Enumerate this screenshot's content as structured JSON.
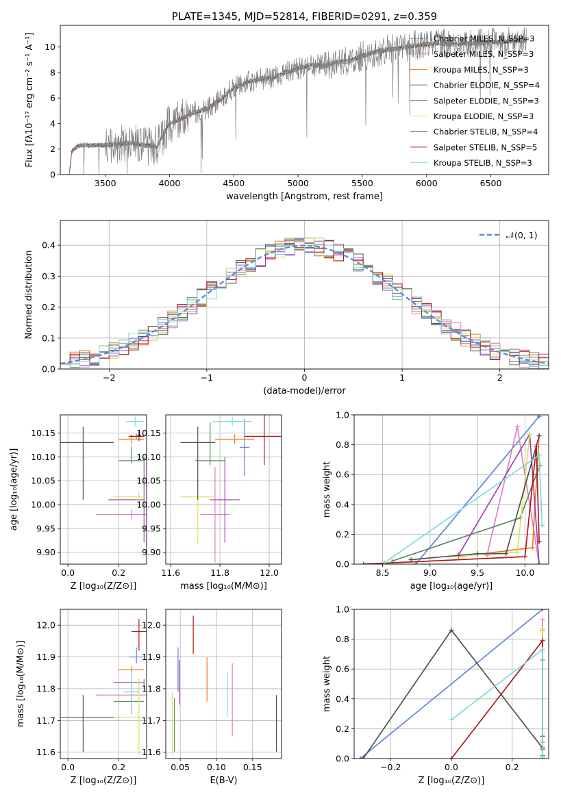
{
  "colors": {
    "Chabrier MILES": "#5b84d8",
    "Salpeter MILES": "#e07ec2",
    "Kroupa MILES": "#ee7a1c",
    "Chabrier ELODIE": "#5a8a5a",
    "Salpeter ELODIE": "#a040b0",
    "Kroupa ELODIE": "#d6e65a",
    "Chabrier STELIB": "#505050",
    "Salpeter STELIB": "#b01818",
    "Kroupa STELIB": "#7fdada",
    "N01": "#5b8ad6",
    "data": "#808080"
  },
  "chart_data": [
    {
      "id": "spectrum",
      "type": "line",
      "title": "PLATE=1345, MJD=52814, FIBERID=0291, z=0.359",
      "xlabel": "wavelength [Angstrom, rest frame]",
      "ylabel": "Flux [fλ10⁻¹⁷ erg cm⁻² s⁻¹ A⁻¹]",
      "xlim": [
        3150,
        6950
      ],
      "ylim": [
        0,
        11.7
      ],
      "xticks": [
        "3500",
        "4000",
        "4500",
        "5000",
        "5500",
        "6000",
        "6500"
      ],
      "yticks": [
        "0",
        "2",
        "4",
        "6",
        "8",
        "10"
      ],
      "legend": [
        "Chabrier MILES, N_SSP=3",
        "Salpeter MILES, N_SSP=3",
        "Kroupa MILES, N_SSP=3",
        "Chabrier ELODIE, N_SSP=4",
        "Salpeter ELODIE, N_SSP=3",
        "Kroupa ELODIE, N_SSP=3",
        "Chabrier STELIB, N_SSP=4",
        "Salpeter STELIB, N_SSP=5",
        "Kroupa STELIB, N_SSP=3"
      ],
      "legend_position": "right",
      "continuum": [
        [
          3220,
          0.0
        ],
        [
          3240,
          1.9
        ],
        [
          3300,
          2.3
        ],
        [
          3400,
          2.3
        ],
        [
          3500,
          2.3
        ],
        [
          3600,
          2.4
        ],
        [
          3700,
          2.5
        ],
        [
          3800,
          2.3
        ],
        [
          3900,
          2.2
        ],
        [
          3950,
          3.1
        ],
        [
          4000,
          4.0
        ],
        [
          4100,
          4.4
        ],
        [
          4200,
          4.9
        ],
        [
          4300,
          5.2
        ],
        [
          4400,
          5.9
        ],
        [
          4500,
          6.8
        ],
        [
          4600,
          7.2
        ],
        [
          4700,
          7.5
        ],
        [
          4800,
          7.6
        ],
        [
          4900,
          8.0
        ],
        [
          5000,
          8.3
        ],
        [
          5100,
          8.6
        ],
        [
          5200,
          8.5
        ],
        [
          5300,
          8.8
        ],
        [
          5400,
          8.9
        ],
        [
          5500,
          9.3
        ],
        [
          5600,
          9.6
        ],
        [
          5700,
          9.8
        ],
        [
          5800,
          9.9
        ],
        [
          5900,
          10.1
        ],
        [
          6000,
          10.2
        ],
        [
          6100,
          10.3
        ],
        [
          6200,
          10.2
        ],
        [
          6300,
          10.3
        ],
        [
          6400,
          10.3
        ],
        [
          6500,
          10.4
        ],
        [
          6600,
          10.4
        ],
        [
          6700,
          10.5
        ],
        [
          6780,
          10.5
        ]
      ]
    },
    {
      "id": "residuals",
      "type": "line",
      "xlabel": "(data-model)/error",
      "ylabel": "Normed distribution",
      "xlim": [
        -2.5,
        2.5
      ],
      "ylim": [
        0,
        0.48
      ],
      "xticks": [
        "−2",
        "−1",
        "0",
        "1",
        "2"
      ],
      "yticks": [
        "0.0",
        "0.1",
        "0.2",
        "0.3",
        "0.4"
      ],
      "legend": [
        "𝒩(0, 1)"
      ],
      "legend_position": "top-right",
      "bin_width": 0.1
    },
    {
      "id": "age_Z",
      "type": "scatter",
      "xlabel": "Z [log₁₀(Z/Z⊙)]",
      "ylabel": "age  [log₁₀(age/yr)]",
      "xlim": [
        -0.03,
        0.31
      ],
      "ylim": [
        9.875,
        10.188
      ],
      "xticks": [
        "0.0",
        "0.2"
      ],
      "yticks": [
        "9.90",
        "9.95",
        "10.00",
        "10.05",
        "10.10",
        "10.15"
      ],
      "points": [
        {
          "name": "Chabrier MILES",
          "x": 0.27,
          "y": 10.143,
          "xerr": [
            0.03,
            0.03
          ],
          "yerr": [
            0.005,
            0.005
          ]
        },
        {
          "name": "Salpeter MILES",
          "x": 0.25,
          "y": 9.979,
          "xerr": [
            0.14,
            0.06
          ],
          "yerr": [
            0.01,
            0.01
          ]
        },
        {
          "name": "Kroupa MILES",
          "x": 0.25,
          "y": 10.137,
          "xerr": [
            0.05,
            0.05
          ],
          "yerr": [
            0.01,
            0.01
          ]
        },
        {
          "name": "Chabrier ELODIE",
          "x": 0.25,
          "y": 10.092,
          "xerr": [
            0.05,
            0.05
          ],
          "yerr": [
            0.005,
            0.03
          ]
        },
        {
          "name": "Salpeter ELODIE",
          "x": 0.3,
          "y": 10.01,
          "xerr": [
            0.14,
            0.0
          ],
          "yerr": [
            0.09,
            0.09
          ]
        },
        {
          "name": "Kroupa ELODIE",
          "x": 0.28,
          "y": 10.016,
          "xerr": [
            0.1,
            0.02
          ],
          "yerr": [
            0.01,
            0.01
          ]
        },
        {
          "name": "Chabrier STELIB",
          "x": 0.06,
          "y": 10.13,
          "xerr": [
            0.12,
            0.12
          ],
          "yerr": [
            0.12,
            0.033
          ]
        },
        {
          "name": "Salpeter STELIB",
          "x": 0.28,
          "y": 10.143,
          "xerr": [
            0.04,
            0.02
          ],
          "yerr": [
            0.01,
            0.01
          ]
        },
        {
          "name": "Kroupa STELIB",
          "x": 0.265,
          "y": 10.174,
          "xerr": [
            0.035,
            0.035
          ],
          "yerr": [
            0.01,
            0.01
          ]
        }
      ]
    },
    {
      "id": "age_mass",
      "type": "scatter",
      "xlabel": "mass [log₁₀(M/M⊙)]",
      "ylabel": "",
      "xlim": [
        11.58,
        12.05
      ],
      "ylim": [
        9.875,
        10.188
      ],
      "xticks": [
        "11.6",
        "11.8",
        "12.0"
      ],
      "yticks": [
        "9.90",
        "9.95",
        "10.00",
        "10.05",
        "10.10",
        "10.15"
      ],
      "points": [
        {
          "name": "Chabrier MILES",
          "x": 11.9,
          "y": 10.12,
          "xerr": [
            0.02,
            0.02
          ],
          "yerr": [
            0.06,
            0.06
          ]
        },
        {
          "name": "Salpeter MILES",
          "x": 11.78,
          "y": 9.979,
          "xerr": [
            0.06,
            0.06
          ],
          "yerr": [
            0.1,
            0.1
          ]
        },
        {
          "name": "Kroupa MILES",
          "x": 11.86,
          "y": 10.137,
          "xerr": [
            0.08,
            0.08
          ],
          "yerr": [
            0.01,
            0.01
          ]
        },
        {
          "name": "Chabrier ELODIE",
          "x": 11.76,
          "y": 10.092,
          "xerr": [
            0.06,
            0.06
          ],
          "yerr": [
            0.01,
            0.08
          ]
        },
        {
          "name": "Salpeter ELODIE",
          "x": 11.82,
          "y": 10.01,
          "xerr": [
            0.06,
            0.06
          ],
          "yerr": [
            0.09,
            0.09
          ]
        },
        {
          "name": "Kroupa ELODIE",
          "x": 11.71,
          "y": 10.016,
          "xerr": [
            0.07,
            0.07
          ],
          "yerr": [
            0.1,
            0.1
          ]
        },
        {
          "name": "Chabrier STELIB",
          "x": 11.71,
          "y": 10.13,
          "xerr": [
            0.07,
            0.07
          ],
          "yerr": [
            0.12,
            0.033
          ]
        },
        {
          "name": "Salpeter STELIB",
          "x": 11.98,
          "y": 10.143,
          "xerr": [
            0.08,
            0.08
          ],
          "yerr": [
            0.06,
            0.06
          ]
        },
        {
          "name": "Kroupa STELIB",
          "x": 11.85,
          "y": 10.174,
          "xerr": [
            0.08,
            0.08
          ],
          "yerr": [
            0.01,
            0.01
          ]
        }
      ]
    },
    {
      "id": "mass_weight_age",
      "type": "line",
      "xlabel": "age  [log₁₀(age/yr)]",
      "ylabel": "mass weight",
      "xlim": [
        8.2,
        10.25
      ],
      "ylim": [
        0,
        1.0
      ],
      "xticks": [
        "8.5",
        "9.0",
        "9.5",
        "10.0"
      ],
      "yticks": [
        "0.0",
        "0.2",
        "0.4",
        "0.6",
        "0.8",
        "1.0"
      ],
      "series": [
        {
          "name": "Chabrier MILES",
          "points": [
            [
              8.85,
              0.0
            ],
            [
              10.15,
              0.99
            ]
          ]
        },
        {
          "name": "Salpeter MILES",
          "points": [
            [
              9.6,
              0.06
            ],
            [
              9.92,
              0.92
            ],
            [
              10.15,
              0.0
            ]
          ]
        },
        {
          "name": "Kroupa MILES",
          "points": [
            [
              9.3,
              0.05
            ],
            [
              10.08,
              0.11
            ],
            [
              10.15,
              0.86
            ]
          ]
        },
        {
          "name": "Chabrier ELODIE",
          "points": [
            [
              8.6,
              0.02
            ],
            [
              9.95,
              0.31
            ],
            [
              10.12,
              0.6
            ],
            [
              10.16,
              0.66
            ]
          ]
        },
        {
          "name": "Salpeter ELODIE",
          "points": [
            [
              9.3,
              0.06
            ],
            [
              10.05,
              0.87
            ],
            [
              10.15,
              0.0
            ]
          ]
        },
        {
          "name": "Kroupa ELODIE",
          "points": [
            [
              9.2,
              0.05
            ],
            [
              9.92,
              0.08
            ],
            [
              10.05,
              0.87
            ]
          ]
        },
        {
          "name": "Chabrier STELIB",
          "points": [
            [
              8.8,
              0.03
            ],
            [
              9.5,
              0.07
            ],
            [
              9.8,
              0.07
            ],
            [
              10.15,
              0.86
            ]
          ]
        },
        {
          "name": "Salpeter STELIB",
          "points": [
            [
              8.3,
              0.0
            ],
            [
              10.0,
              0.05
            ],
            [
              10.12,
              0.79
            ],
            [
              10.15,
              0.15
            ]
          ]
        },
        {
          "name": "Kroupa STELIB",
          "points": [
            [
              8.52,
              0.01
            ],
            [
              10.15,
              0.73
            ],
            [
              10.18,
              0.26
            ]
          ]
        }
      ]
    },
    {
      "id": "mass_Z",
      "type": "scatter",
      "xlabel": "Z [log₁₀(Z/Z⊙)]",
      "ylabel": "mass [log₁₀(M/M⊙)]",
      "xlim": [
        -0.03,
        0.31
      ],
      "ylim": [
        11.58,
        12.05
      ],
      "xticks": [
        "0.0",
        "0.2"
      ],
      "yticks": [
        "11.6",
        "11.7",
        "11.8",
        "11.9",
        "12.0"
      ],
      "points": [
        {
          "name": "Chabrier MILES",
          "x": 0.27,
          "y": 11.9,
          "xerr": [
            0.03,
            0.03
          ],
          "yerr": [
            0.02,
            0.03
          ]
        },
        {
          "name": "Salpeter MILES",
          "x": 0.25,
          "y": 11.78,
          "xerr": [
            0.14,
            0.06
          ],
          "yerr": [
            0.06,
            0.06
          ]
        },
        {
          "name": "Kroupa MILES",
          "x": 0.25,
          "y": 11.86,
          "xerr": [
            0.05,
            0.05
          ],
          "yerr": [
            0.01,
            0.01
          ]
        },
        {
          "name": "Chabrier ELODIE",
          "x": 0.25,
          "y": 11.76,
          "xerr": [
            0.07,
            0.05
          ],
          "yerr": [
            0.01,
            0.01
          ]
        },
        {
          "name": "Salpeter ELODIE",
          "x": 0.3,
          "y": 11.82,
          "xerr": [
            0.12,
            0.0
          ],
          "yerr": [
            0.01,
            0.01
          ]
        },
        {
          "name": "Kroupa ELODIE",
          "x": 0.28,
          "y": 11.71,
          "xerr": [
            0.1,
            0.02
          ],
          "yerr": [
            0.12,
            0.12
          ]
        },
        {
          "name": "Chabrier STELIB",
          "x": 0.06,
          "y": 11.71,
          "xerr": [
            0.12,
            0.12
          ],
          "yerr": [
            0.11,
            0.07
          ]
        },
        {
          "name": "Salpeter STELIB",
          "x": 0.28,
          "y": 11.98,
          "xerr": [
            0.03,
            0.03
          ],
          "yerr": [
            0.06,
            0.04
          ]
        },
        {
          "name": "Kroupa STELIB",
          "x": 0.25,
          "y": 11.79,
          "xerr": [
            0.03,
            0.03
          ],
          "yerr": [
            0.06,
            0.06
          ]
        }
      ]
    },
    {
      "id": "mass_ebv",
      "type": "scatter",
      "xlabel": "E(B-V)",
      "ylabel": "",
      "xlim": [
        0.03,
        0.19
      ],
      "ylim": [
        11.58,
        12.05
      ],
      "xticks": [
        "0.05",
        "0.10",
        "0.15"
      ],
      "yticks": [
        "11.6",
        "11.7",
        "11.8",
        "11.9",
        "12.0"
      ],
      "points": [
        {
          "name": "Chabrier MILES",
          "x": 0.047,
          "y": 11.86,
          "yerr": [
            0.07,
            0.07
          ]
        },
        {
          "name": "Salpeter MILES",
          "x": 0.122,
          "y": 11.76,
          "yerr": [
            0.11,
            0.12
          ]
        },
        {
          "name": "Kroupa MILES",
          "x": 0.087,
          "y": 11.83,
          "yerr": [
            0.07,
            0.07
          ]
        },
        {
          "name": "Chabrier ELODIE",
          "x": 0.042,
          "y": 11.75,
          "yerr": [
            0.15,
            0.02
          ]
        },
        {
          "name": "Salpeter ELODIE",
          "x": 0.049,
          "y": 11.82,
          "yerr": [
            0.07,
            0.07
          ]
        },
        {
          "name": "Kroupa ELODIE",
          "x": 0.039,
          "y": 11.69,
          "yerr": [
            0.1,
            0.1
          ]
        },
        {
          "name": "Chabrier STELIB",
          "x": 0.183,
          "y": 11.69,
          "yerr": [
            0.09,
            0.09
          ]
        },
        {
          "name": "Salpeter STELIB",
          "x": 0.068,
          "y": 11.97,
          "yerr": [
            0.06,
            0.06
          ]
        },
        {
          "name": "Kroupa STELIB",
          "x": 0.115,
          "y": 11.78,
          "yerr": [
            0.07,
            0.07
          ]
        }
      ]
    },
    {
      "id": "mass_weight_Z",
      "type": "line",
      "xlabel": "Z [log₁₀(Z/Z⊙)]",
      "ylabel": "mass weight",
      "xlim": [
        -0.32,
        0.32
      ],
      "ylim": [
        0,
        1.0
      ],
      "xticks": [
        "−0.2",
        "0.0",
        "0.2"
      ],
      "yticks": [
        "0.0",
        "0.2",
        "0.4",
        "0.6",
        "0.8",
        "1.0"
      ],
      "series": [
        {
          "name": "Chabrier MILES",
          "points": [
            [
              -0.3,
              0.0
            ],
            [
              0.3,
              1.0
            ]
          ]
        },
        {
          "name": "Salpeter MILES",
          "points": [
            [
              0.3,
              0.93
            ],
            [
              0.3,
              0.0
            ]
          ]
        },
        {
          "name": "Kroupa MILES",
          "points": [
            [
              0.3,
              0.11
            ],
            [
              0.3,
              0.86
            ]
          ]
        },
        {
          "name": "Chabrier ELODIE",
          "points": [
            [
              0.3,
              0.02
            ],
            [
              0.3,
              0.66
            ]
          ]
        },
        {
          "name": "Salpeter ELODIE",
          "points": [
            [
              0.3,
              0.87
            ],
            [
              0.3,
              0.06
            ]
          ]
        },
        {
          "name": "Kroupa ELODIE",
          "points": [
            [
              0.3,
              0.08
            ],
            [
              0.3,
              0.87
            ]
          ]
        },
        {
          "name": "Chabrier STELIB",
          "points": [
            [
              -0.29,
              0.0
            ],
            [
              0.0,
              0.86
            ],
            [
              0.3,
              0.07
            ]
          ]
        },
        {
          "name": "Salpeter STELIB",
          "points": [
            [
              0.0,
              0.0
            ],
            [
              0.3,
              0.79
            ],
            [
              0.3,
              0.15
            ]
          ]
        },
        {
          "name": "Kroupa STELIB",
          "points": [
            [
              0.0,
              0.26
            ],
            [
              0.3,
              0.73
            ],
            [
              0.3,
              0.01
            ]
          ]
        }
      ]
    }
  ]
}
